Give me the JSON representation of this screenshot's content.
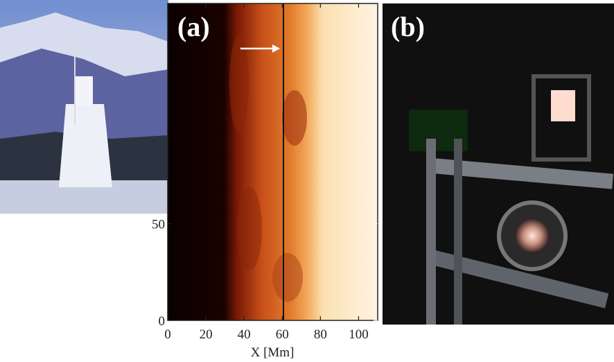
{
  "panel_a": {
    "label": "(a)",
    "x_label": "X [Mm]",
    "xlim": [
      0,
      110
    ],
    "xticks": [
      0,
      20,
      40,
      60,
      80,
      100
    ],
    "ylim": [
      0,
      164
    ],
    "yticks": [
      0,
      50
    ]
  },
  "panel_b": {
    "label": "(b)"
  }
}
